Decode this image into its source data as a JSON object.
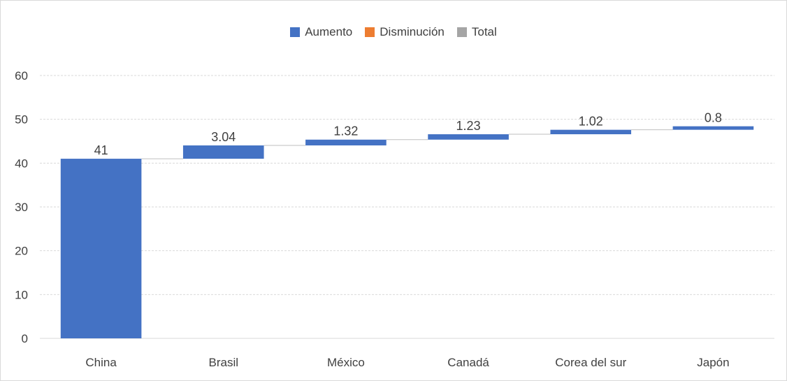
{
  "colors": {
    "increase": "#4472C4",
    "decrease": "#ED7D31",
    "total": "#A5A5A5",
    "grid": "#d9d9d9",
    "connector": "#bfbfbf",
    "text": "#404040"
  },
  "legend": [
    {
      "label": "Aumento",
      "color": "#4472C4"
    },
    {
      "label": "Disminución",
      "color": "#ED7D31"
    },
    {
      "label": "Total",
      "color": "#A5A5A5"
    }
  ],
  "chart_data": {
    "type": "waterfall",
    "title": "",
    "xlabel": "",
    "ylabel": "",
    "categories": [
      "China",
      "Brasil",
      "México",
      "Canadá",
      "Corea del sur",
      "Japón"
    ],
    "values": [
      41,
      3.04,
      1.32,
      1.23,
      1.02,
      0.8
    ],
    "data_labels": [
      "41",
      "3.04",
      "1.32",
      "1.23",
      "1.02",
      "0.8"
    ],
    "ylim": [
      0,
      60
    ],
    "yticks": [
      0,
      10,
      20,
      30,
      40,
      50,
      60
    ],
    "grid": true,
    "legend_position": "top"
  }
}
